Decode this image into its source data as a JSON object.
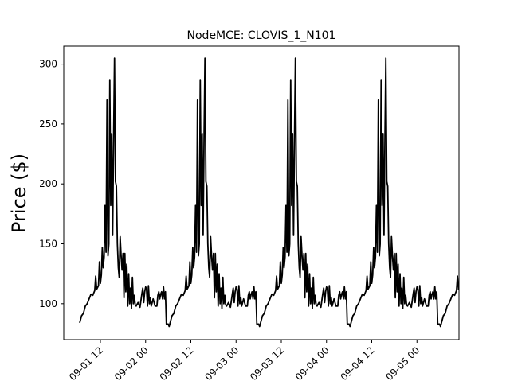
{
  "chart_data": {
    "type": "line",
    "title": "NodeMCE: CLOVIS_1_N101",
    "xlabel": "",
    "ylabel": "Price ($)",
    "x_ticks": [
      "09-01 12",
      "09-02 00",
      "09-02 12",
      "09-03 00",
      "09-03 12",
      "09-04 00",
      "09-04 12",
      "09-05 00"
    ],
    "x_tick_fragments": [
      "09-01 12",
      "09-02 00",
      "09-02 12",
      "09-03 00",
      "09-03 12",
      "09-04 00",
      "09-04 12",
      "09-05 00"
    ],
    "y_ticks": [
      "100",
      "150",
      "200",
      "250",
      "300"
    ],
    "ylim": [
      70,
      315
    ],
    "grid": false,
    "series": [
      {
        "color": "#000000",
        "period_hours": 24,
        "day_profile": [
          {
            "h": 0,
            "v": 114
          },
          {
            "h": 0.25,
            "v": 112
          },
          {
            "h": 0.5,
            "v": 98
          },
          {
            "h": 0.75,
            "v": 115
          },
          {
            "h": 1,
            "v": 100
          },
          {
            "h": 1.25,
            "v": 105
          },
          {
            "h": 1.5,
            "v": 98
          },
          {
            "h": 2,
            "v": 104
          },
          {
            "h": 2.5,
            "v": 98
          },
          {
            "h": 3,
            "v": 98
          },
          {
            "h": 3.25,
            "v": 107
          },
          {
            "h": 3.5,
            "v": 110
          },
          {
            "h": 3.75,
            "v": 104
          },
          {
            "h": 4,
            "v": 108
          },
          {
            "h": 4.25,
            "v": 110
          },
          {
            "h": 4.5,
            "v": 104
          },
          {
            "h": 4.75,
            "v": 114
          },
          {
            "h": 5,
            "v": 104
          },
          {
            "h": 5.25,
            "v": 110
          },
          {
            "h": 5.5,
            "v": 83
          },
          {
            "h": 6,
            "v": 83
          },
          {
            "h": 6.25,
            "v": 81
          },
          {
            "h": 6.5,
            "v": 84
          },
          {
            "h": 7,
            "v": 90
          },
          {
            "h": 7.5,
            "v": 92
          },
          {
            "h": 8,
            "v": 98
          },
          {
            "h": 8.5,
            "v": 100
          },
          {
            "h": 9,
            "v": 104
          },
          {
            "h": 9.5,
            "v": 108
          },
          {
            "h": 10,
            "v": 107
          },
          {
            "h": 10.5,
            "v": 111
          },
          {
            "h": 10.75,
            "v": 123
          },
          {
            "h": 11,
            "v": 112
          },
          {
            "h": 11.5,
            "v": 115
          },
          {
            "h": 11.75,
            "v": 135
          },
          {
            "h": 12,
            "v": 117
          },
          {
            "h": 12.25,
            "v": 124
          },
          {
            "h": 12.5,
            "v": 147
          },
          {
            "h": 12.75,
            "v": 130
          },
          {
            "h": 13,
            "v": 139
          },
          {
            "h": 13.25,
            "v": 182
          },
          {
            "h": 13.5,
            "v": 143
          },
          {
            "h": 13.75,
            "v": 270
          },
          {
            "h": 14,
            "v": 140
          },
          {
            "h": 14.25,
            "v": 150
          },
          {
            "h": 14.5,
            "v": 287
          },
          {
            "h": 14.75,
            "v": 182
          },
          {
            "h": 15,
            "v": 242
          },
          {
            "h": 15.25,
            "v": 157
          },
          {
            "h": 15.5,
            "v": 240
          },
          {
            "h": 15.75,
            "v": 305
          },
          {
            "h": 16,
            "v": 202
          },
          {
            "h": 16.25,
            "v": 198
          },
          {
            "h": 16.5,
            "v": 150
          },
          {
            "h": 16.75,
            "v": 130
          },
          {
            "h": 17,
            "v": 122
          },
          {
            "h": 17.25,
            "v": 156
          },
          {
            "h": 17.5,
            "v": 140
          },
          {
            "h": 17.75,
            "v": 128
          },
          {
            "h": 18,
            "v": 142
          },
          {
            "h": 18.25,
            "v": 105
          },
          {
            "h": 18.5,
            "v": 142
          },
          {
            "h": 18.75,
            "v": 110
          },
          {
            "h": 19,
            "v": 133
          },
          {
            "h": 19.25,
            "v": 98
          },
          {
            "h": 19.5,
            "v": 125
          },
          {
            "h": 19.75,
            "v": 100
          },
          {
            "h": 20,
            "v": 113
          },
          {
            "h": 20.25,
            "v": 96
          },
          {
            "h": 20.5,
            "v": 122
          },
          {
            "h": 20.75,
            "v": 100
          },
          {
            "h": 21,
            "v": 107
          },
          {
            "h": 21.25,
            "v": 99
          },
          {
            "h": 21.5,
            "v": 98
          },
          {
            "h": 22,
            "v": 101
          },
          {
            "h": 22.5,
            "v": 97
          },
          {
            "h": 23,
            "v": 108
          },
          {
            "h": 23.25,
            "v": 113
          },
          {
            "h": 23.5,
            "v": 101
          },
          {
            "h": 23.75,
            "v": 110
          }
        ]
      }
    ]
  }
}
